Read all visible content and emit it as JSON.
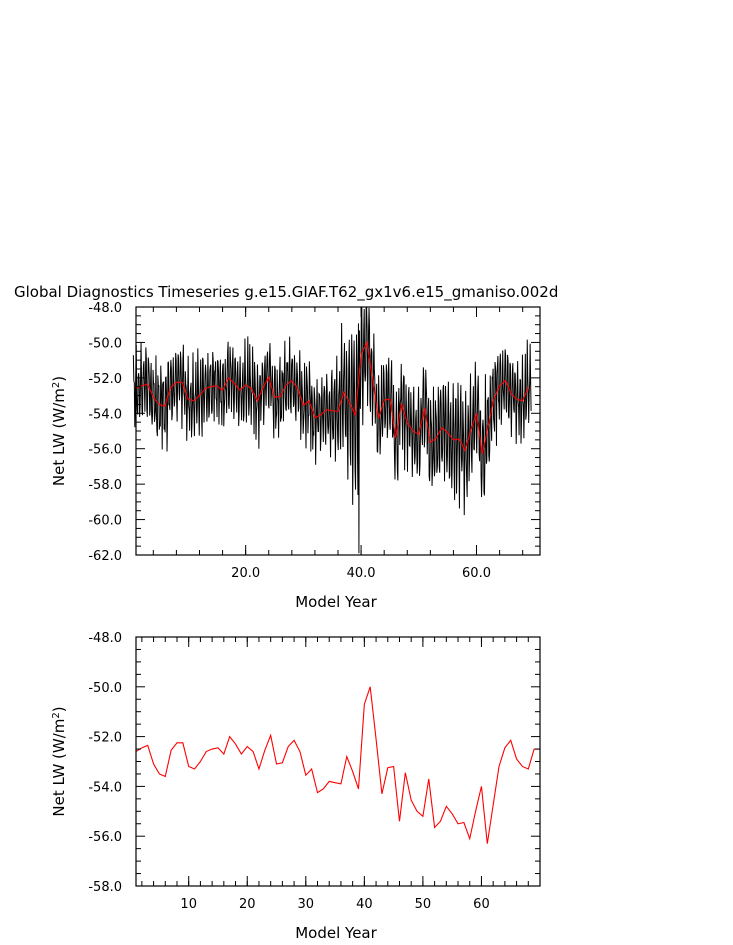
{
  "title": "Global Diagnostics Timeseries g.e15.GIAF.T62_gx1v6.e15_gmaniso.002d",
  "colors": {
    "monthly": "#000000",
    "annual": "#ff0000",
    "axes": "#000000"
  },
  "chart_data": [
    {
      "type": "line",
      "panel": "top",
      "ylabel_main": "Net LW (W/m",
      "ylabel_sup": "2",
      "ylabel_end": ")",
      "xlabel": "Model Year",
      "xlim": [
        1,
        71
      ],
      "ylim": [
        -62.0,
        -48.0
      ],
      "xticks": [
        20.0,
        40.0,
        60.0
      ],
      "xtick_labels": [
        "20.0",
        "40.0",
        "60.0"
      ],
      "yticks": [
        -62.0,
        -60.0,
        -58.0,
        -56.0,
        -54.0,
        -52.0,
        -50.0,
        -48.0
      ],
      "ytick_labels": [
        "-62.0",
        "-60.0",
        "-58.0",
        "-56.0",
        "-54.0",
        "-52.0",
        "-50.0",
        "-48.0"
      ],
      "series": [
        {
          "name": "monthly",
          "color": "#000000",
          "description_x_per_year": 12,
          "annual_cycle_amplitude": [
            1.7,
            1.8,
            1.9,
            1.6,
            1.8,
            1.9,
            1.7,
            1.8,
            1.9,
            1.7,
            1.8,
            2.0,
            1.7,
            1.8,
            1.6,
            1.7,
            1.9,
            1.8,
            1.7,
            2.0,
            1.8,
            1.9,
            1.7,
            1.8,
            1.9,
            1.8,
            1.7,
            1.8,
            1.6,
            1.8,
            1.9,
            1.8,
            1.7,
            1.8,
            2.2,
            2.4,
            2.9,
            3.8,
            4.5,
            3.5,
            3.0,
            2.2,
            2.1,
            2.0,
            2.1,
            2.3,
            1.9,
            2.0,
            2.2,
            2.4,
            2.3,
            2.5,
            2.4,
            2.6,
            2.7,
            2.9,
            3.0,
            2.8,
            2.5,
            2.4,
            2.6,
            2.4,
            2.1,
            1.9,
            1.8,
            1.9,
            1.8,
            1.9,
            1.9
          ]
        },
        {
          "name": "annual-mean",
          "color": "#ff0000",
          "x": [
            1,
            2,
            3,
            4,
            5,
            6,
            7,
            8,
            9,
            10,
            11,
            12,
            13,
            14,
            15,
            16,
            17,
            18,
            19,
            20,
            21,
            22,
            23,
            24,
            25,
            26,
            27,
            28,
            29,
            30,
            31,
            32,
            33,
            34,
            35,
            36,
            37,
            38,
            39,
            40,
            41,
            42,
            43,
            44,
            45,
            46,
            47,
            48,
            49,
            50,
            51,
            52,
            53,
            54,
            55,
            56,
            57,
            58,
            59,
            60,
            61,
            62,
            63,
            64,
            65,
            66,
            67,
            68,
            69
          ],
          "values": [
            -52.6,
            -52.45,
            -52.35,
            -53.1,
            -53.5,
            -53.6,
            -52.55,
            -52.25,
            -52.25,
            -53.2,
            -53.3,
            -53.0,
            -52.6,
            -52.5,
            -52.45,
            -52.7,
            -52.0,
            -52.3,
            -52.7,
            -52.4,
            -52.6,
            -53.3,
            -52.55,
            -51.95,
            -53.1,
            -53.05,
            -52.4,
            -52.15,
            -52.6,
            -53.55,
            -53.3,
            -54.25,
            -54.1,
            -53.8,
            -53.85,
            -53.9,
            -52.8,
            -53.4,
            -54.1,
            -50.7,
            -50.0,
            -52.1,
            -54.3,
            -53.25,
            -53.2,
            -55.4,
            -53.45,
            -54.55,
            -55.0,
            -55.2,
            -53.7,
            -55.65,
            -55.4,
            -54.8,
            -55.1,
            -55.5,
            -55.45,
            -56.1,
            -55.0,
            -54.0,
            -56.3,
            -54.75,
            -53.2,
            -52.45,
            -52.15,
            -52.9,
            -53.2,
            -53.3,
            -52.5
          ]
        }
      ]
    },
    {
      "type": "line",
      "panel": "bottom",
      "ylabel_main": "Net LW (W/m",
      "ylabel_sup": "2",
      "ylabel_end": ")",
      "xlabel": "Model Year",
      "xlim": [
        1,
        70
      ],
      "ylim": [
        -58.0,
        -48.0
      ],
      "xticks": [
        10,
        20,
        30,
        40,
        50,
        60
      ],
      "xtick_labels": [
        "10",
        "20",
        "30",
        "40",
        "50",
        "60"
      ],
      "yticks": [
        -58.0,
        -56.0,
        -54.0,
        -52.0,
        -50.0,
        -48.0
      ],
      "ytick_labels": [
        "-58.0",
        "-56.0",
        "-54.0",
        "-52.0",
        "-50.0",
        "-48.0"
      ],
      "series": [
        {
          "name": "annual-mean",
          "color": "#ff0000",
          "x": [
            1,
            2,
            3,
            4,
            5,
            6,
            7,
            8,
            9,
            10,
            11,
            12,
            13,
            14,
            15,
            16,
            17,
            18,
            19,
            20,
            21,
            22,
            23,
            24,
            25,
            26,
            27,
            28,
            29,
            30,
            31,
            32,
            33,
            34,
            35,
            36,
            37,
            38,
            39,
            40,
            41,
            42,
            43,
            44,
            45,
            46,
            47,
            48,
            49,
            50,
            51,
            52,
            53,
            54,
            55,
            56,
            57,
            58,
            59,
            60,
            61,
            62,
            63,
            64,
            65,
            66,
            67,
            68,
            69,
            70
          ],
          "values": [
            -52.6,
            -52.45,
            -52.35,
            -53.1,
            -53.5,
            -53.6,
            -52.55,
            -52.25,
            -52.25,
            -53.2,
            -53.3,
            -53.0,
            -52.6,
            -52.5,
            -52.45,
            -52.7,
            -52.0,
            -52.3,
            -52.7,
            -52.4,
            -52.6,
            -53.3,
            -52.55,
            -51.95,
            -53.1,
            -53.05,
            -52.4,
            -52.15,
            -52.6,
            -53.55,
            -53.3,
            -54.25,
            -54.1,
            -53.8,
            -53.85,
            -53.9,
            -52.8,
            -53.4,
            -54.1,
            -50.7,
            -50.0,
            -52.1,
            -54.3,
            -53.25,
            -53.2,
            -55.4,
            -53.45,
            -54.55,
            -55.0,
            -55.2,
            -53.7,
            -55.65,
            -55.4,
            -54.8,
            -55.1,
            -55.5,
            -55.45,
            -56.1,
            -55.0,
            -54.0,
            -56.3,
            -54.75,
            -53.2,
            -52.45,
            -52.15,
            -52.9,
            -53.2,
            -53.3,
            -52.5,
            -52.5
          ]
        }
      ]
    }
  ]
}
